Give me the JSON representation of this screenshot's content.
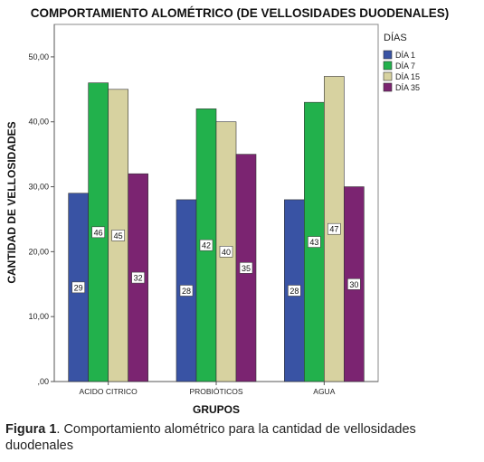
{
  "chart_data": {
    "type": "bar",
    "title": "COMPORTAMIENTO ALOMÉTRICO (DE VELLOSIDADES DUODENALES)",
    "xlabel": "GRUPOS",
    "ylabel": "CANTIDAD DE VELLOSIDADES",
    "categories": [
      "ACIDO CITRICO",
      "PROBIÓTICOS",
      "AGUA"
    ],
    "ylim": [
      0,
      55
    ],
    "yticks": [
      0,
      10,
      20,
      30,
      40,
      50
    ],
    "ytick_labels": [
      ",00",
      "10,00",
      "20,00",
      "30,00",
      "40,00",
      "50,00"
    ],
    "grid": false,
    "legend_title": "DÍAS",
    "legend_position": "right",
    "series": [
      {
        "name": "DÍA 1",
        "color": "#3953a4",
        "values": [
          29,
          28,
          28
        ]
      },
      {
        "name": "DÍA 7",
        "color": "#22b14c",
        "values": [
          46,
          42,
          43
        ]
      },
      {
        "name": "DÍA 15",
        "color": "#d7d2a0",
        "values": [
          45,
          40,
          47
        ]
      },
      {
        "name": "DÍA 35",
        "color": "#7b2471",
        "values": [
          32,
          35,
          30
        ]
      }
    ]
  },
  "caption": {
    "label": "Figura 1",
    "text": ". Comportamiento alométrico para la cantidad de vellosidades duodenales"
  }
}
